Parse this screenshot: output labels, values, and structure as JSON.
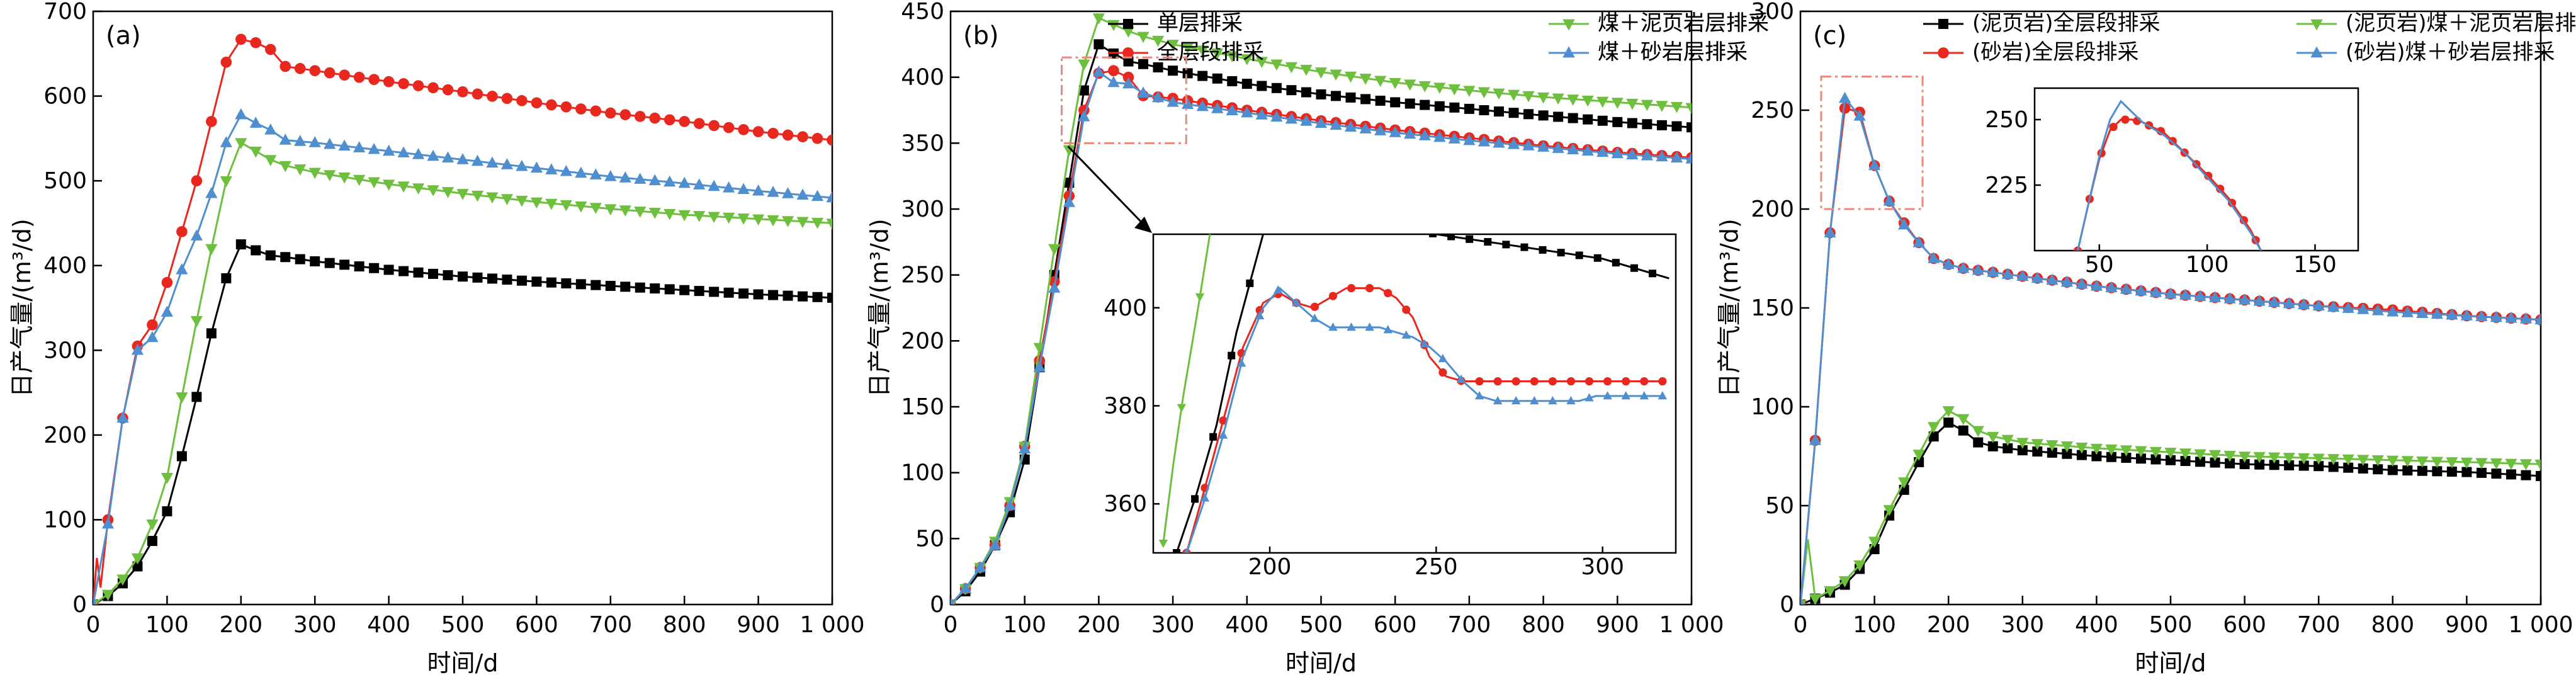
{
  "chart_data": [
    {
      "type": "line",
      "panel_label": "(a)",
      "xlabel": "时间/d",
      "ylabel": "日产气量/(m³/d)",
      "xlim": [
        0,
        1000
      ],
      "ylim": [
        0,
        700
      ],
      "xticks": [
        0,
        100,
        200,
        300,
        400,
        500,
        600,
        700,
        800,
        900,
        1000
      ],
      "xtick_labels": [
        "0",
        "100",
        "200",
        "300",
        "400",
        "500",
        "600",
        "700",
        "800",
        "900",
        "1 000"
      ],
      "yticks": [
        0,
        100,
        200,
        300,
        400,
        500,
        600,
        700
      ],
      "ytick_labels": [
        "0",
        "100",
        "200",
        "300",
        "400",
        "500",
        "600",
        "700"
      ],
      "grid": false,
      "legend": "top",
      "series": [
        {
          "name": "单层排采",
          "color": "#000000",
          "marker": "square",
          "x": [
            0,
            20,
            40,
            60,
            80,
            100,
            120,
            140,
            160,
            180,
            200,
            220,
            240,
            260,
            300,
            400,
            500,
            600,
            700,
            800,
            900,
            1000
          ],
          "y": [
            0,
            10,
            25,
            45,
            75,
            110,
            175,
            245,
            320,
            385,
            425,
            418,
            412,
            410,
            405,
            395,
            387,
            381,
            376,
            371,
            366,
            362
          ]
        },
        {
          "name": "全层段排采",
          "color": "#e8281e",
          "marker": "circle",
          "x": [
            0,
            5,
            10,
            20,
            40,
            60,
            80,
            100,
            120,
            140,
            160,
            180,
            200,
            220,
            240,
            260,
            300,
            400,
            500,
            600,
            700,
            800,
            900,
            1000
          ],
          "y": [
            0,
            55,
            20,
            100,
            220,
            305,
            330,
            380,
            440,
            500,
            570,
            640,
            667,
            663,
            655,
            635,
            630,
            617,
            605,
            592,
            580,
            570,
            558,
            548
          ]
        },
        {
          "name": "煤＋泥页岩层排采",
          "color": "#6fbf3f",
          "marker": "triangle-down",
          "x": [
            0,
            20,
            40,
            60,
            80,
            100,
            120,
            140,
            160,
            180,
            200,
            220,
            240,
            260,
            300,
            400,
            500,
            600,
            700,
            800,
            900,
            1000
          ],
          "y": [
            0,
            12,
            30,
            55,
            95,
            150,
            245,
            335,
            420,
            500,
            545,
            535,
            525,
            518,
            510,
            496,
            485,
            475,
            467,
            460,
            455,
            450
          ]
        },
        {
          "name": "煤＋砂岩层排采",
          "color": "#4f8fd0",
          "marker": "triangle-up",
          "x": [
            0,
            20,
            40,
            60,
            80,
            100,
            120,
            140,
            160,
            180,
            200,
            220,
            240,
            260,
            300,
            400,
            500,
            600,
            700,
            800,
            900,
            1000
          ],
          "y": [
            0,
            95,
            220,
            300,
            315,
            345,
            395,
            435,
            485,
            545,
            578,
            568,
            560,
            548,
            545,
            535,
            525,
            515,
            505,
            497,
            488,
            480
          ]
        }
      ]
    },
    {
      "type": "line",
      "panel_label": "(b)",
      "xlabel": "时间/d",
      "ylabel": "日产气量/(m³/d)",
      "xlim": [
        0,
        1000
      ],
      "ylim": [
        0,
        450
      ],
      "xticks": [
        0,
        100,
        200,
        300,
        400,
        500,
        600,
        700,
        800,
        900,
        1000
      ],
      "xtick_labels": [
        "0",
        "100",
        "200",
        "300",
        "400",
        "500",
        "600",
        "700",
        "800",
        "900",
        "1 000"
      ],
      "yticks": [
        0,
        50,
        100,
        150,
        200,
        250,
        300,
        350,
        400,
        450
      ],
      "ytick_labels": [
        "0",
        "50",
        "100",
        "150",
        "200",
        "250",
        "300",
        "350",
        "400",
        "450"
      ],
      "grid": false,
      "legend": "top",
      "series": [
        {
          "name": "单层排采",
          "color": "#000000",
          "marker": "square",
          "x": [
            0,
            20,
            40,
            60,
            80,
            100,
            120,
            140,
            160,
            180,
            200,
            220,
            240,
            260,
            300,
            400,
            500,
            600,
            700,
            800,
            900,
            1000
          ],
          "y": [
            0,
            10,
            25,
            45,
            70,
            110,
            180,
            250,
            320,
            390,
            425,
            418,
            412,
            410,
            405,
            395,
            387,
            381,
            376,
            371,
            366,
            362
          ]
        },
        {
          "name": "全层段排采",
          "color": "#e8281e",
          "marker": "circle",
          "x": [
            0,
            20,
            40,
            60,
            80,
            100,
            120,
            140,
            160,
            180,
            200,
            220,
            240,
            260,
            300,
            400,
            500,
            600,
            700,
            800,
            900,
            1000
          ],
          "y": [
            0,
            12,
            28,
            45,
            75,
            120,
            185,
            245,
            310,
            375,
            403,
            405,
            400,
            386,
            384,
            375,
            367,
            360,
            354,
            348,
            343,
            339
          ]
        },
        {
          "name": "煤＋泥页岩层排采",
          "color": "#6fbf3f",
          "marker": "triangle-down",
          "x": [
            0,
            20,
            40,
            60,
            80,
            100,
            120,
            140,
            160,
            180,
            200,
            220,
            240,
            260,
            300,
            400,
            500,
            600,
            700,
            800,
            900,
            1000
          ],
          "y": [
            0,
            12,
            28,
            48,
            78,
            120,
            195,
            270,
            345,
            410,
            445,
            440,
            435,
            431,
            425,
            414,
            404,
            396,
            390,
            385,
            381,
            377
          ]
        },
        {
          "name": "煤＋砂岩层排采",
          "color": "#4f8fd0",
          "marker": "triangle-up",
          "x": [
            0,
            20,
            40,
            60,
            80,
            100,
            120,
            140,
            160,
            180,
            200,
            220,
            240,
            260,
            300,
            400,
            500,
            600,
            700,
            800,
            900,
            1000
          ],
          "y": [
            0,
            12,
            28,
            45,
            75,
            118,
            180,
            240,
            305,
            370,
            404,
            396,
            395,
            388,
            381,
            373,
            365,
            358,
            352,
            347,
            342,
            338
          ]
        }
      ],
      "inset": {
        "xlim": [
          165,
          322
        ],
        "ylim": [
          350,
          415
        ],
        "xticks": [
          200,
          250,
          300
        ],
        "xtick_labels": [
          "200",
          "250",
          "300"
        ],
        "yticks": [
          360,
          380,
          400
        ],
        "ytick_labels": [
          "360",
          "380",
          "400"
        ],
        "zoom_box": {
          "x": [
            150,
            318
          ],
          "y": [
            350,
            415
          ]
        },
        "series": [
          {
            "name": "单层排采",
            "color": "#000000",
            "marker": "square",
            "x": [
              172,
              178,
              184,
              190,
              194,
              198,
              210,
              250,
              300,
              320
            ],
            "y": [
              350,
              362,
              376,
              395,
              405,
              415,
              421,
              415,
              410,
              406
            ]
          },
          {
            "name": "全层段排采",
            "color": "#e8281e",
            "marker": "circle",
            "x": [
              175,
              180,
              186,
              192,
              198,
              203,
              208,
              213,
              218,
              223,
              228,
              233,
              238,
              243,
              248,
              253,
              258,
              263,
              268,
              273,
              278,
              283,
              288,
              293,
              298,
              303,
              308,
              313,
              318
            ],
            "y": [
              350,
              362,
              377,
              392,
              401,
              403,
              401,
              400,
              402,
              404,
              404,
              404,
              402,
              398,
              390,
              386,
              385,
              385,
              385,
              385,
              385,
              385,
              385,
              385,
              385,
              385,
              385,
              385,
              385
            ]
          },
          {
            "name": "煤＋泥页岩层排采",
            "color": "#6fbf3f",
            "marker": "triangle-down",
            "x": [
              168,
              171,
              174,
              178,
              182
            ],
            "y": [
              352,
              368,
              382,
              398,
              415
            ]
          },
          {
            "name": "煤＋砂岩层排采",
            "color": "#4f8fd0",
            "marker": "triangle-up",
            "x": [
              175,
              180,
              186,
              192,
              198,
              203,
              208,
              213,
              218,
              223,
              228,
              233,
              238,
              243,
              248,
              253,
              258,
              263,
              268,
              273,
              278,
              283,
              288,
              293,
              298,
              303,
              308,
              313,
              318
            ],
            "y": [
              350,
              360,
              374,
              390,
              400,
              404,
              401,
              398,
              396,
              396,
              396,
              396,
              395,
              394,
              392,
              389,
              385,
              382,
              381,
              381,
              381,
              381,
              381,
              381,
              382,
              382,
              382,
              382,
              382
            ]
          }
        ]
      }
    },
    {
      "type": "line",
      "panel_label": "(c)",
      "xlabel": "时间/d",
      "ylabel": "日产气量/(m³/d)",
      "xlim": [
        0,
        1000
      ],
      "ylim": [
        0,
        300
      ],
      "xticks": [
        0,
        100,
        200,
        300,
        400,
        500,
        600,
        700,
        800,
        900,
        1000
      ],
      "xtick_labels": [
        "0",
        "100",
        "200",
        "300",
        "400",
        "500",
        "600",
        "700",
        "800",
        "900",
        "1 000"
      ],
      "yticks": [
        0,
        50,
        100,
        150,
        200,
        250,
        300
      ],
      "ytick_labels": [
        "0",
        "50",
        "100",
        "150",
        "200",
        "250",
        "300"
      ],
      "grid": false,
      "legend": "top",
      "series": [
        {
          "name": "(泥页岩)全层段排采",
          "color": "#000000",
          "marker": "square",
          "x": [
            0,
            20,
            40,
            60,
            80,
            100,
            120,
            140,
            160,
            180,
            200,
            220,
            240,
            260,
            300,
            400,
            500,
            600,
            700,
            800,
            900,
            1000
          ],
          "y": [
            0,
            3,
            6,
            10,
            18,
            28,
            45,
            58,
            72,
            85,
            92,
            88,
            82,
            80,
            78,
            75,
            73,
            71,
            70,
            68,
            67,
            65
          ]
        },
        {
          "name": "(砂岩)全层段排采",
          "color": "#e8281e",
          "marker": "circle",
          "x": [
            0,
            20,
            40,
            60,
            80,
            100,
            120,
            140,
            160,
            180,
            200,
            220,
            240,
            260,
            300,
            400,
            500,
            600,
            700,
            800,
            900,
            1000
          ],
          "y": [
            0,
            83,
            188,
            251,
            249,
            222,
            204,
            193,
            183,
            175,
            172,
            170,
            169,
            168,
            166,
            161,
            157,
            154,
            151,
            149,
            146,
            144
          ]
        },
        {
          "name": "(泥页岩)煤＋泥页岩层排采",
          "color": "#6fbf3f",
          "marker": "triangle-down",
          "x": [
            0,
            10,
            20,
            40,
            60,
            80,
            100,
            120,
            140,
            160,
            180,
            200,
            220,
            240,
            260,
            300,
            400,
            500,
            600,
            700,
            800,
            900,
            1000
          ],
          "y": [
            0,
            33,
            3,
            7,
            12,
            20,
            32,
            48,
            62,
            76,
            90,
            98,
            94,
            88,
            85,
            82,
            79,
            77,
            75,
            74,
            73,
            72,
            71
          ]
        },
        {
          "name": "(砂岩)煤＋砂岩层排采",
          "color": "#4f8fd0",
          "marker": "triangle-up",
          "x": [
            0,
            20,
            40,
            60,
            80,
            100,
            120,
            140,
            160,
            180,
            200,
            220,
            240,
            260,
            300,
            400,
            500,
            600,
            700,
            800,
            900,
            1000
          ],
          "y": [
            0,
            83,
            188,
            256,
            247,
            222,
            204,
            192,
            183,
            175,
            172,
            170,
            169,
            168,
            166,
            161,
            157,
            154,
            151,
            148,
            146,
            144
          ]
        }
      ],
      "inset": {
        "xlim": [
          20,
          170
        ],
        "ylim": [
          200,
          262
        ],
        "xticks": [
          50,
          100,
          150
        ],
        "xtick_labels": [
          "50",
          "100",
          "150"
        ],
        "yticks": [
          225,
          250
        ],
        "ytick_labels": [
          "225",
          "250"
        ],
        "zoom_box": {
          "x": [
            28,
            165
          ],
          "y": [
            200,
            267
          ]
        },
        "series": [
          {
            "name": "(砂岩)全层段排采",
            "color": "#e8281e",
            "marker": "circle",
            "x": [
              40,
              45,
              50,
              55,
              60,
              65,
              70,
              80,
              90,
              100,
              110,
              120,
              125
            ],
            "y": [
              200,
              218,
              235,
              246,
              250,
              250,
              249,
              245,
              237,
              229,
              220,
              208,
              200
            ]
          },
          {
            "name": "(砂岩)煤＋砂岩层排采",
            "color": "#4f8fd0",
            "marker": "none",
            "x": [
              40,
              45,
              50,
              55,
              60,
              65,
              70,
              80,
              90,
              100,
              110,
              120,
              125
            ],
            "y": [
              200,
              218,
              236,
              250,
              257,
              253,
              249,
              244,
              237,
              228,
              219,
              207,
              200
            ]
          }
        ]
      }
    }
  ]
}
